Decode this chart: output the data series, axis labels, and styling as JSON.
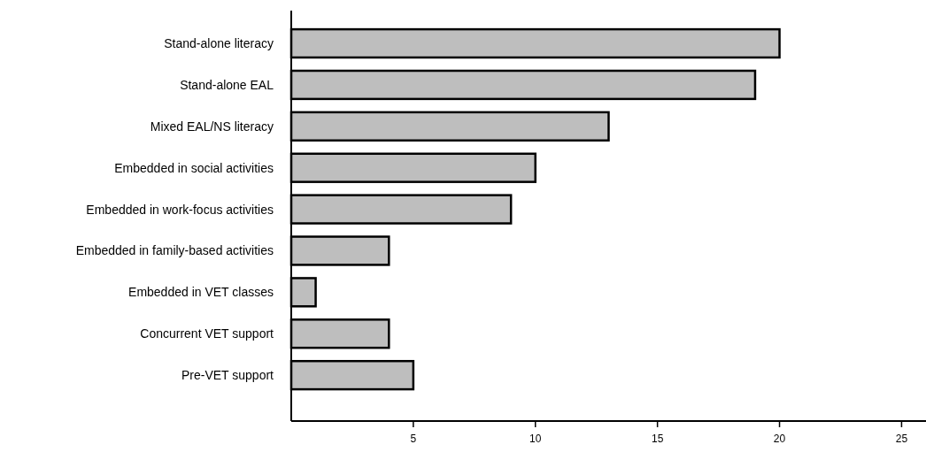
{
  "chart_data": {
    "type": "bar",
    "orientation": "horizontal",
    "categories": [
      "Stand-alone literacy",
      "Stand-alone EAL",
      "Mixed EAL/NS literacy",
      "Embedded in social activities",
      "Embedded in work-focus activities",
      "Embedded in family-based activities",
      "Embedded in VET classes",
      "Concurrent VET support",
      "Pre-VET support"
    ],
    "values": [
      20,
      19,
      13,
      10,
      9,
      4,
      1,
      4,
      5
    ],
    "color": "#bebebe",
    "xlim": [
      0,
      26
    ],
    "xticks": [
      5,
      10,
      15,
      20,
      25
    ],
    "grid": false
  }
}
